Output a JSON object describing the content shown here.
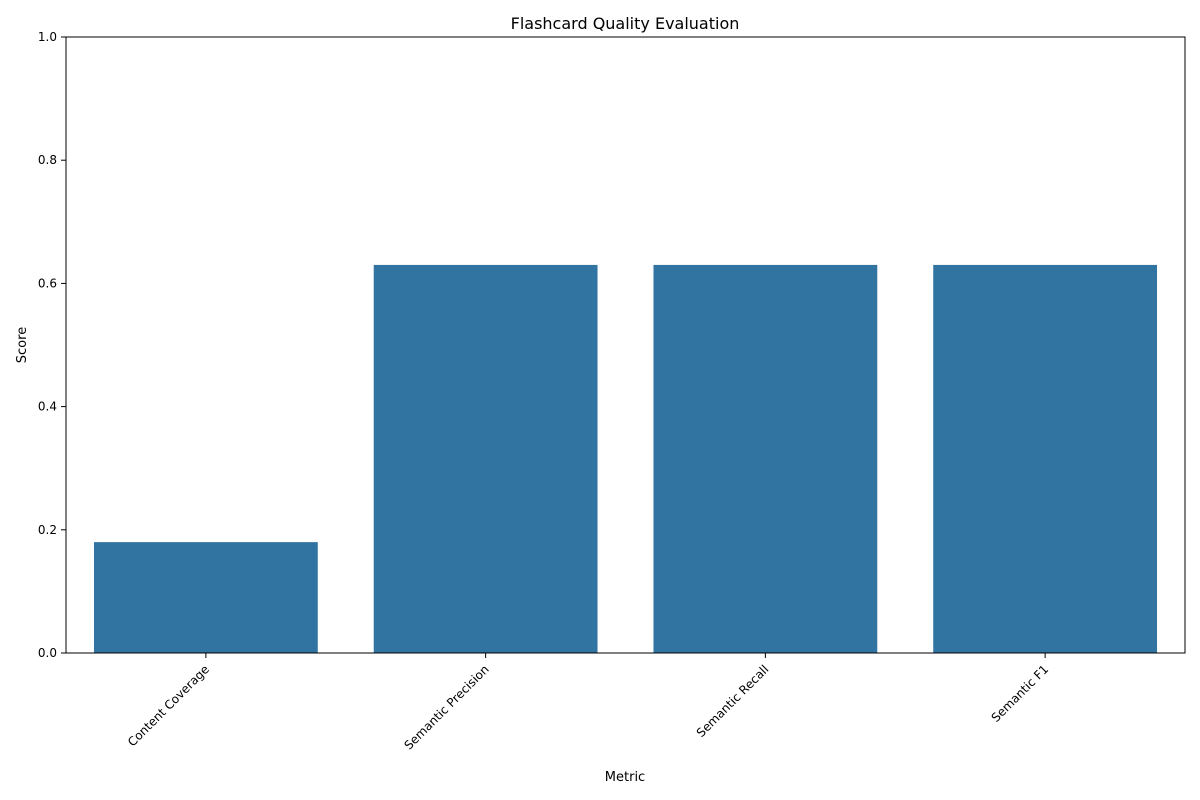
{
  "chart_data": {
    "type": "bar",
    "title": "Flashcard Quality Evaluation",
    "xlabel": "Metric",
    "ylabel": "Score",
    "categories": [
      "Content Coverage",
      "Semantic Precision",
      "Semantic Recall",
      "Semantic F1"
    ],
    "values": [
      0.18,
      0.63,
      0.63,
      0.63
    ],
    "ylim": [
      0,
      1
    ],
    "yticks": [
      0.0,
      0.2,
      0.4,
      0.6,
      0.8,
      1.0
    ],
    "ytick_labels": [
      "0.0",
      "0.2",
      "0.4",
      "0.6",
      "0.8",
      "1.0"
    ],
    "x_tick_rotation_deg": 45,
    "grid": false,
    "bar_color": "#3274a1"
  }
}
